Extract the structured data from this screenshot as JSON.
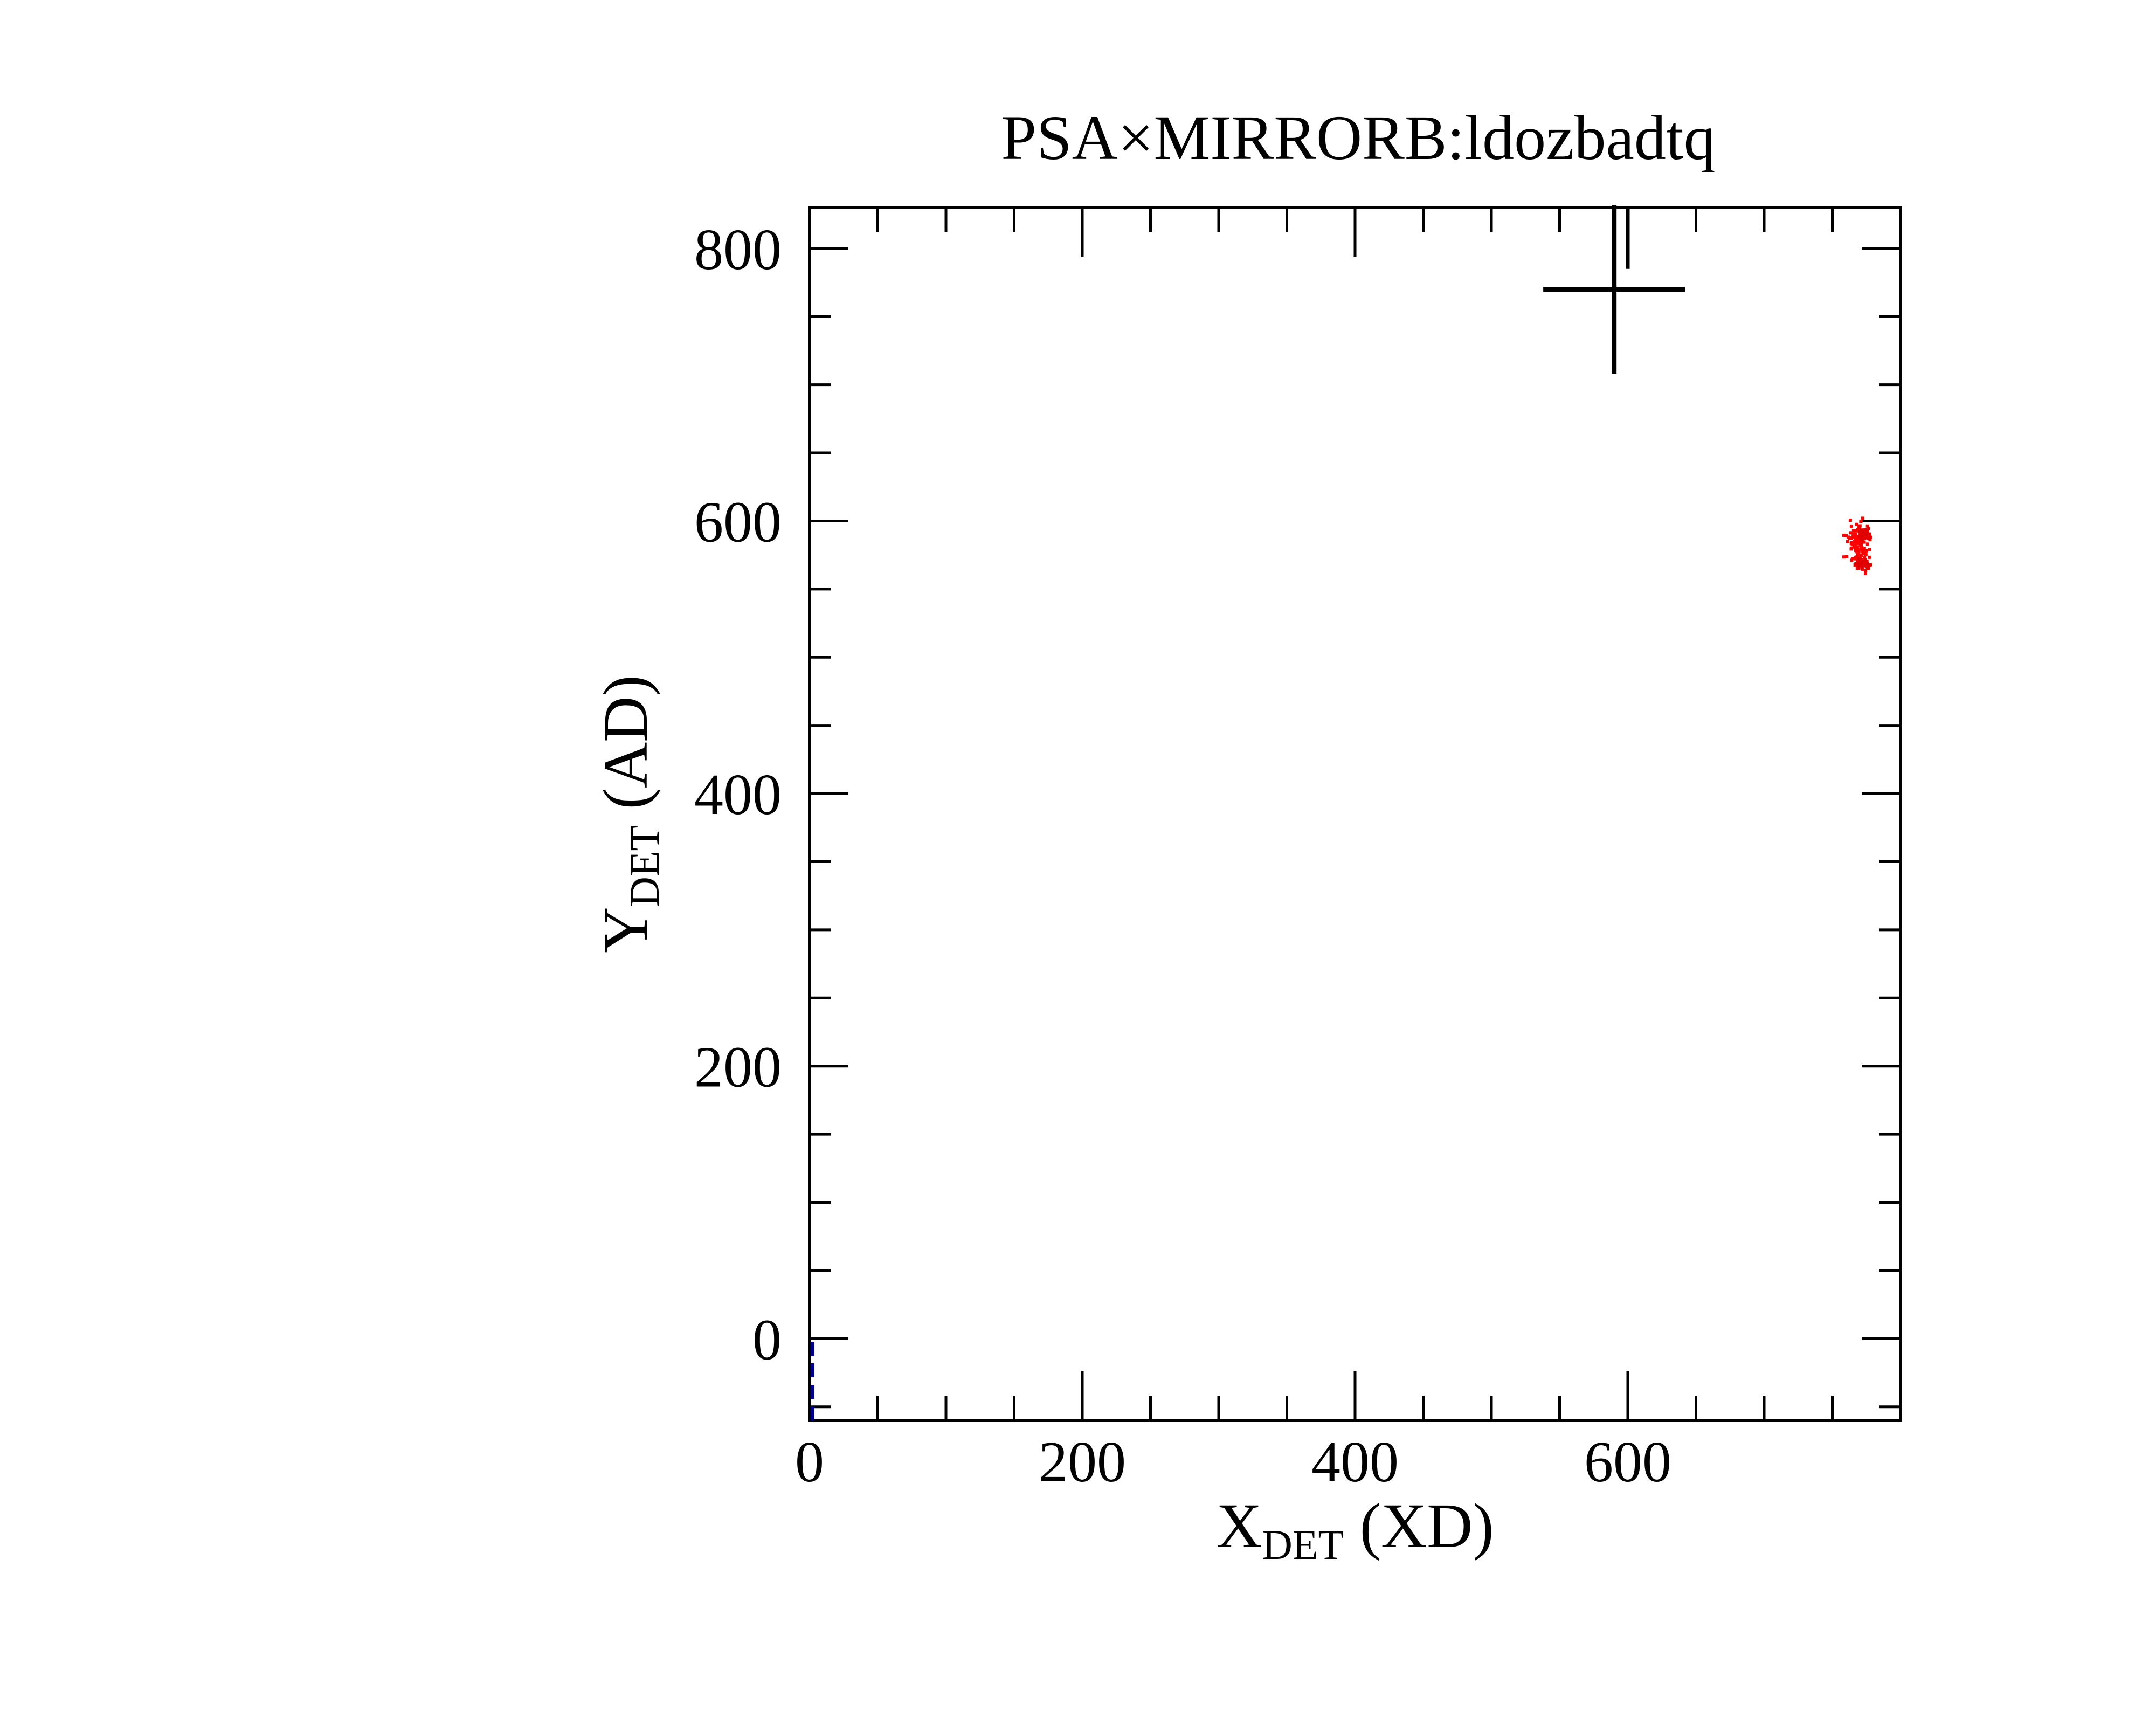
{
  "chart_data": {
    "type": "scatter",
    "title": "PSA×MIRRORB:ldozbadtq",
    "xlabel": {
      "main": "X",
      "sub": "DET",
      "tail": " (XD)"
    },
    "ylabel": {
      "main": "Y",
      "sub": "DET",
      "tail": " (AD)"
    },
    "xlim": [
      0,
      800
    ],
    "ylim": [
      -60,
      830
    ],
    "x_ticks": [
      0,
      200,
      400,
      600
    ],
    "y_ticks": [
      0,
      200,
      400,
      600,
      800
    ],
    "x_tick_labels": [
      "0",
      "200",
      "400",
      "600"
    ],
    "y_tick_labels": [
      "0",
      "200",
      "400",
      "600",
      "800"
    ],
    "x_minor_step": 50,
    "y_minor_step": 50,
    "grid": false,
    "marker_cross": {
      "x": 590,
      "y": 770,
      "half_width": 52,
      "half_height": 62
    },
    "marker_line": {
      "x": 600,
      "y_from": 830,
      "y_to": 785
    },
    "point_clusters": [
      {
        "center_x": 769,
        "center_y": 582,
        "spread_x": 7,
        "spread_y": 14,
        "count": 120,
        "color": "#ff0000"
      },
      {
        "center_x": 774,
        "center_y": 590,
        "spread_x": 4,
        "spread_y": 3,
        "count": 45,
        "color": "#e00000"
      },
      {
        "center_x": 773,
        "center_y": 568,
        "spread_x": 4,
        "spread_y": 3,
        "count": 45,
        "color": "#e00000"
      }
    ],
    "edge_trace": {
      "x": 2,
      "y_from": -60,
      "y_to": 0,
      "color": "#00008b"
    }
  }
}
